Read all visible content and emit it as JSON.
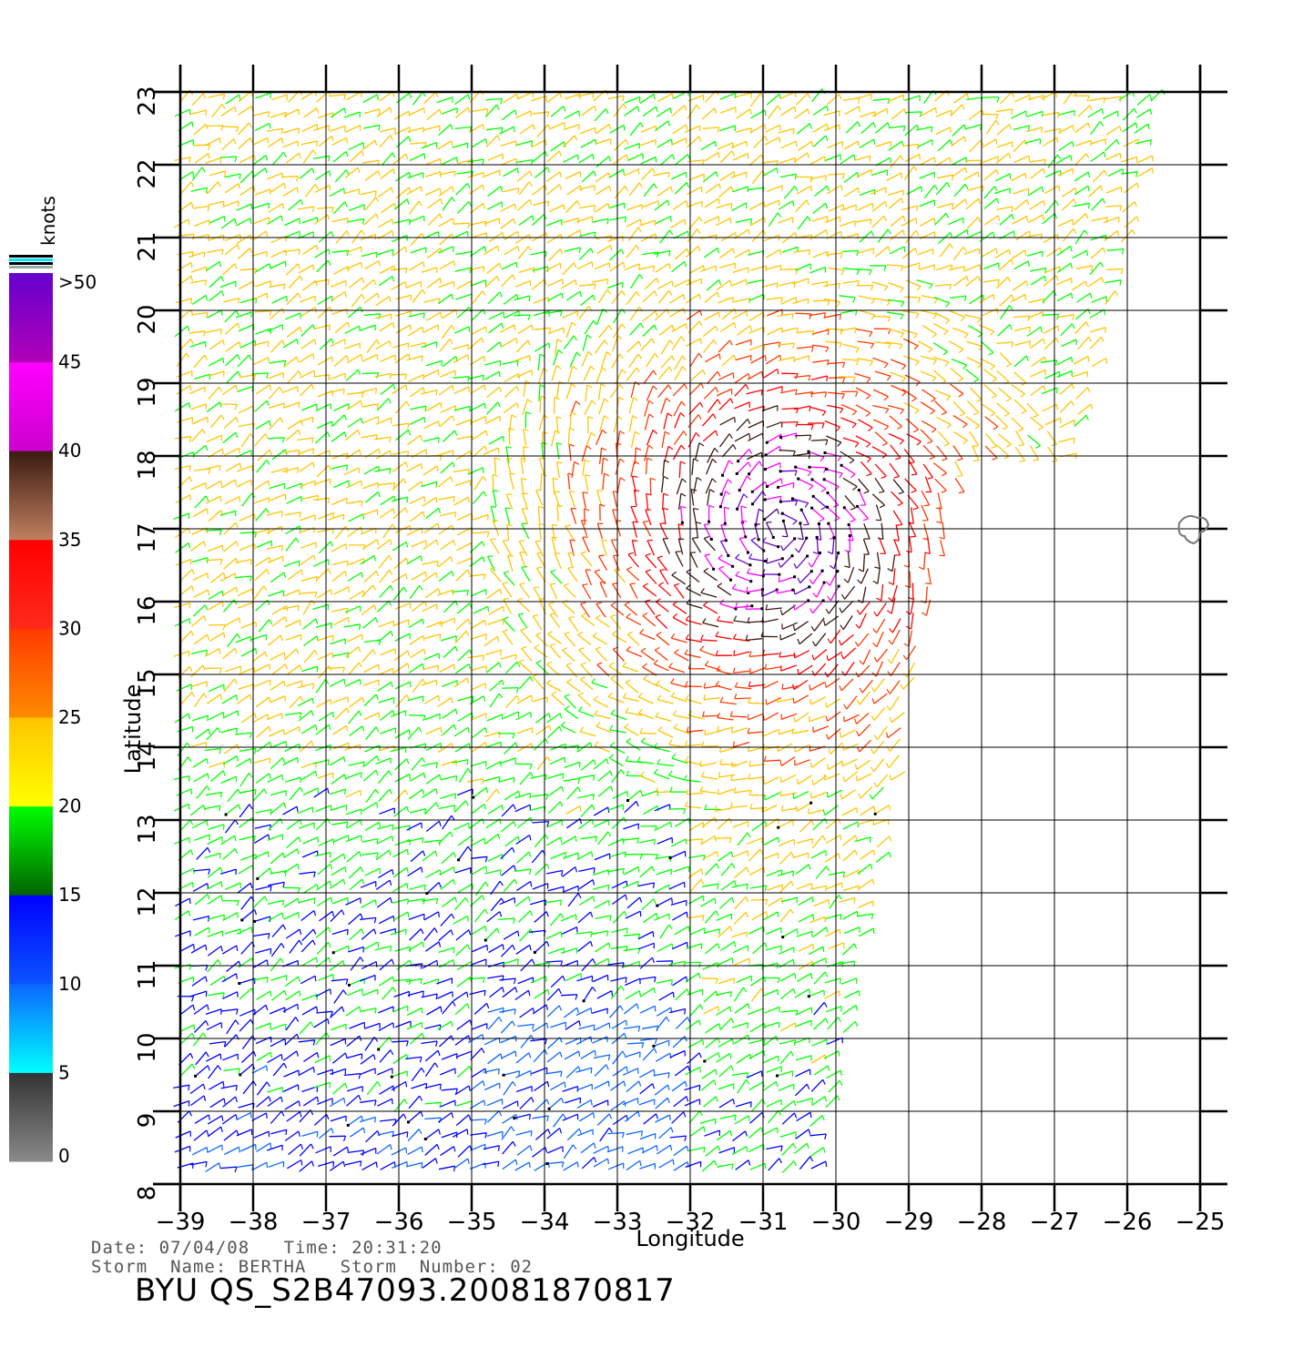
{
  "colorbar": {
    "unit": "knots",
    "labels": [
      ">50",
      "45",
      "40",
      "35",
      "30",
      "25",
      "20",
      "15",
      "10",
      "5",
      "0"
    ],
    "stops": [
      {
        "from": 0,
        "to": 5,
        "top": "#333333",
        "bottom": "#8a8a8a"
      },
      {
        "from": 5,
        "to": 10,
        "top": "#0b66ff",
        "bottom": "#00ffff"
      },
      {
        "from": 10,
        "to": 15,
        "top": "#0000ff",
        "bottom": "#0a55ff"
      },
      {
        "from": 15,
        "to": 20,
        "top": "#00ff00",
        "bottom": "#006400"
      },
      {
        "from": 20,
        "to": 25,
        "top": "#ffc400",
        "bottom": "#ffff00"
      },
      {
        "from": 25,
        "to": 30,
        "top": "#ff3a00",
        "bottom": "#ff8c00"
      },
      {
        "from": 30,
        "to": 35,
        "top": "#ff0000",
        "bottom": "#ff2a1a"
      },
      {
        "from": 35,
        "to": 40,
        "top": "#3a1a10",
        "bottom": "#c08060"
      },
      {
        "from": 40,
        "to": 45,
        "top": "#ff00ff",
        "bottom": "#cc00cc"
      },
      {
        "from": 45,
        "to": 50,
        "top": "#6600cc",
        "bottom": "#b000b8"
      }
    ]
  },
  "map": {
    "lon_range": [
      -39,
      -25
    ],
    "lat_range": [
      8,
      23
    ],
    "lon_ticks": [
      "−39",
      "−38",
      "−37",
      "−36",
      "−35",
      "−34",
      "−33",
      "−32",
      "−31",
      "−30",
      "−29",
      "−28",
      "−27",
      "−26",
      "−25"
    ],
    "lat_ticks": [
      "8",
      "9",
      "10",
      "11",
      "12",
      "13",
      "14",
      "15",
      "16",
      "17",
      "18",
      "19",
      "20",
      "21",
      "22",
      "23"
    ],
    "xlabel": "Longitude",
    "ylabel": "Latitude",
    "storm_center": {
      "lon": -30.8,
      "lat": 17.0
    }
  },
  "info": {
    "line1": "Date: 07/04/08   Time: 20:31:20",
    "line2": "Storm  Name: BERTHA   Storm  Number: 02",
    "product_id": "BYU  QS_S2B47093.20081870817"
  }
}
